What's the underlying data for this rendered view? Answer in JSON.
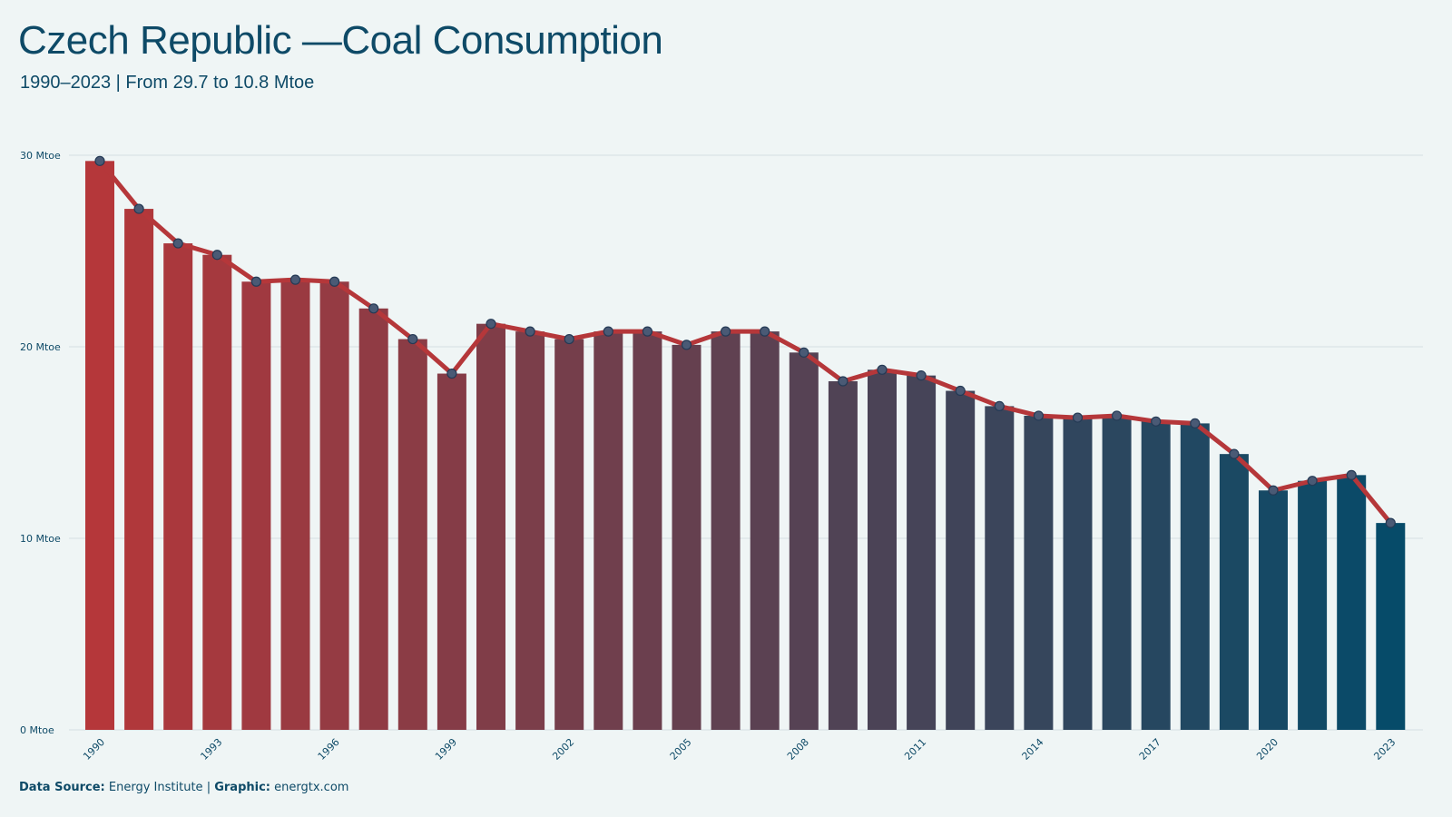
{
  "header": {
    "title": "Czech Republic —Coal Consumption",
    "subtitle": "1990–2023 | From 29.7 to 10.8 Mtoe"
  },
  "footer": {
    "source_label": "Data Source:",
    "source_value": "Energy Institute",
    "separator": "|",
    "graphic_label": "Graphic:",
    "graphic_value": "energtx.com"
  },
  "colors": {
    "start_bar": "#b5373a",
    "end_bar": "#064b69",
    "line": "#b5373a",
    "marker_fill": "#4a5a75",
    "marker_stroke": "#243a55",
    "grid": "#d6dfe2",
    "text": "#0e4a67",
    "background": "#eff5f5"
  },
  "chart_data": {
    "type": "bar",
    "overlay": "line",
    "categories": [
      "1990",
      "1991",
      "1992",
      "1993",
      "1994",
      "1995",
      "1996",
      "1997",
      "1998",
      "1999",
      "2000",
      "2001",
      "2002",
      "2003",
      "2004",
      "2005",
      "2006",
      "2007",
      "2008",
      "2009",
      "2010",
      "2011",
      "2012",
      "2013",
      "2014",
      "2015",
      "2016",
      "2017",
      "2018",
      "2019",
      "2020",
      "2021",
      "2022",
      "2023"
    ],
    "series": [
      {
        "values": [
          29.7,
          27.2,
          25.4,
          24.8,
          23.4,
          23.5,
          23.4,
          22.0,
          20.4,
          18.6,
          21.2,
          20.8,
          20.4,
          20.8,
          20.8,
          20.1,
          20.8,
          20.8,
          19.7,
          18.2,
          18.8,
          18.5,
          17.7,
          16.9,
          16.4,
          16.3,
          16.4,
          16.1,
          16.0,
          14.4,
          12.5,
          13.0,
          13.3,
          10.8
        ]
      }
    ],
    "x_tick_labels": [
      "1990",
      "1993",
      "1996",
      "1999",
      "2002",
      "2005",
      "2008",
      "2011",
      "2014",
      "2017",
      "2020",
      "2023"
    ],
    "y_ticks": [
      0,
      10,
      20,
      30
    ],
    "y_tick_labels": [
      "0 Mtoe",
      "10 Mtoe",
      "20 Mtoe",
      "30 Mtoe"
    ],
    "ylim": [
      0,
      30
    ],
    "xlabel": "",
    "ylabel": "",
    "grid": true,
    "legend": false
  }
}
